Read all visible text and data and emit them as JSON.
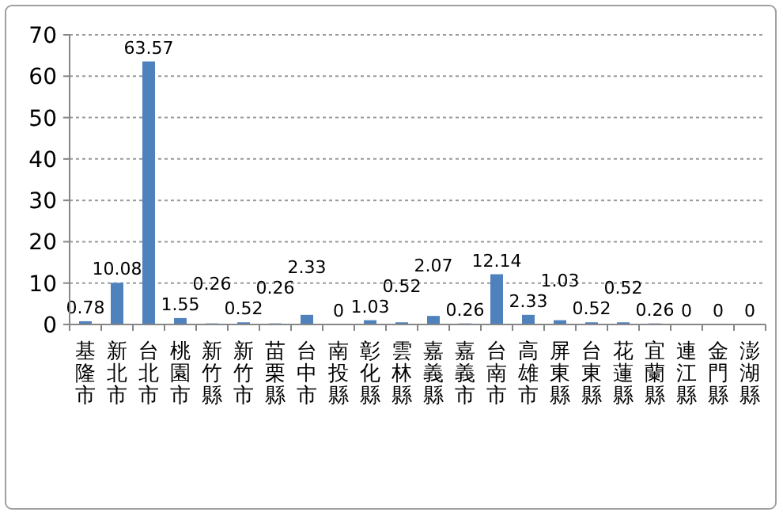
{
  "chart_data": {
    "type": "bar",
    "categories": [
      "基隆市",
      "新北市",
      "台北市",
      "桃園市",
      "新竹縣",
      "新竹市",
      "苗栗縣",
      "台中市",
      "南投縣",
      "彰化縣",
      "雲林縣",
      "嘉義縣",
      "嘉義市",
      "台南市",
      "高雄市",
      "屏東縣",
      "台東縣",
      "花蓮縣",
      "宜蘭縣",
      "連江縣",
      "金門縣",
      "澎湖縣"
    ],
    "values": [
      0.78,
      10.08,
      63.57,
      1.55,
      0.26,
      0.52,
      0.26,
      2.33,
      0,
      1.03,
      0.52,
      2.07,
      0.26,
      12.14,
      2.33,
      1.03,
      0.52,
      0.52,
      0.26,
      0,
      0,
      0
    ],
    "color": "#4f81bd",
    "ylim": [
      0,
      70
    ],
    "yticks": [
      0,
      10,
      20,
      30,
      40,
      50,
      60,
      70
    ],
    "grid": "y",
    "data_labels": true
  }
}
